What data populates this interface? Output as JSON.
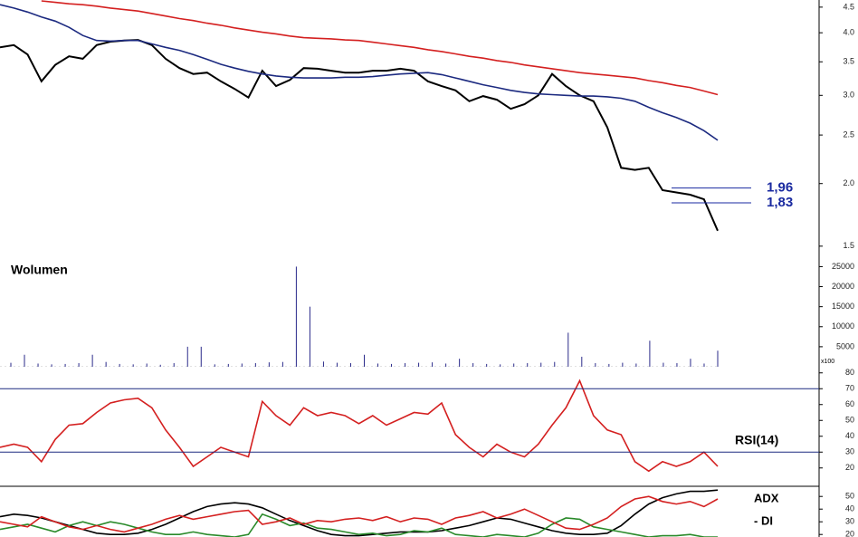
{
  "chart_data": [
    {
      "type": "line",
      "log": true,
      "ylim": [
        1.42,
        4.65
      ],
      "yticks": [
        1.5,
        {
          "value": 2,
          "label": "2.0"
        },
        2.5,
        {
          "value": 3,
          "label": "3.0"
        },
        3.5,
        {
          "value": 4,
          "label": "4.0"
        },
        4.5
      ],
      "series": [
        {
          "color": "#000000",
          "values": [
            3.74,
            3.78,
            3.62,
            3.2,
            3.45,
            3.59,
            3.55,
            3.78,
            3.84,
            3.86,
            3.87,
            3.78,
            3.55,
            3.4,
            3.31,
            3.33,
            3.2,
            3.09,
            2.97,
            3.36,
            3.13,
            3.22,
            3.4,
            3.39,
            3.36,
            3.33,
            3.33,
            3.36,
            3.36,
            3.39,
            3.36,
            3.2,
            3.13,
            3.07,
            2.92,
            2.99,
            2.94,
            2.82,
            2.88,
            3.0,
            3.31,
            3.13,
            3.0,
            2.92,
            2.59,
            2.15,
            2.13,
            2.15,
            1.94,
            1.92,
            1.9,
            1.86,
            1.61
          ]
        },
        {
          "color": "#d42020",
          "values": [
            null,
            null,
            null,
            4.63,
            4.6,
            4.57,
            4.55,
            4.52,
            4.48,
            4.45,
            4.42,
            4.37,
            4.32,
            4.27,
            4.23,
            4.18,
            4.14,
            4.09,
            4.05,
            4.01,
            3.98,
            3.94,
            3.91,
            3.9,
            3.89,
            3.87,
            3.86,
            3.83,
            3.8,
            3.77,
            3.74,
            3.7,
            3.67,
            3.63,
            3.59,
            3.56,
            3.52,
            3.49,
            3.45,
            3.42,
            3.39,
            3.36,
            3.33,
            3.31,
            3.29,
            3.27,
            3.25,
            3.21,
            3.18,
            3.14,
            3.11,
            3.06,
            3.01
          ]
        },
        {
          "color": "#1c2a80",
          "values": [
            4.55,
            4.48,
            4.4,
            4.3,
            4.22,
            4.1,
            3.95,
            3.86,
            3.85,
            3.86,
            3.86,
            3.8,
            3.74,
            3.69,
            3.62,
            3.54,
            3.46,
            3.4,
            3.35,
            3.31,
            3.28,
            3.26,
            3.25,
            3.25,
            3.25,
            3.26,
            3.26,
            3.27,
            3.29,
            3.31,
            3.32,
            3.33,
            3.3,
            3.25,
            3.2,
            3.15,
            3.11,
            3.07,
            3.04,
            3.02,
            3.01,
            3.0,
            2.99,
            2.99,
            2.98,
            2.96,
            2.92,
            2.84,
            2.77,
            2.71,
            2.64,
            2.55,
            2.44
          ]
        }
      ],
      "annotations": [
        {
          "value": 1.96,
          "label": "1,96"
        },
        {
          "value": 1.83,
          "label": "1,83"
        }
      ],
      "annotation_color": "#1a2aa0"
    },
    {
      "type": "bar",
      "title": "Wolumen",
      "unit_label": "x100",
      "color": "#2a2a8a",
      "ylim": [
        0,
        26000
      ],
      "yticks": [
        5000,
        10000,
        15000,
        20000,
        25000
      ],
      "values": [
        1000,
        3000,
        800,
        600,
        700,
        900,
        3000,
        1200,
        700,
        600,
        800,
        500,
        900,
        5000,
        5000,
        600,
        700,
        800,
        900,
        1100,
        1200,
        25000,
        15000,
        1300,
        1000,
        900,
        3000,
        800,
        700,
        900,
        1000,
        1100,
        800,
        2000,
        900,
        700,
        600,
        800,
        900,
        1000,
        1200,
        8500,
        2500,
        900,
        700,
        1000,
        800,
        6500,
        1000,
        900,
        2000,
        800,
        4000
      ]
    },
    {
      "type": "line",
      "title": "RSI(14)",
      "ylim": [
        9,
        81
      ],
      "yticks": [
        20,
        30,
        40,
        50,
        60,
        70,
        80
      ],
      "hlines": [
        30,
        70
      ],
      "series": [
        {
          "color": "#d42020",
          "values": [
            33,
            35,
            33,
            24,
            38,
            47,
            48,
            55,
            61,
            63,
            64,
            58,
            44,
            33,
            21,
            27,
            33,
            30,
            27,
            62,
            53,
            47,
            58,
            53,
            55,
            53,
            48,
            53,
            47,
            51,
            55,
            54,
            61,
            41,
            33,
            27,
            35,
            30,
            27,
            35,
            47,
            58,
            75,
            53,
            44,
            41,
            24,
            18,
            24,
            21,
            24,
            30,
            21
          ]
        }
      ]
    },
    {
      "type": "line",
      "ylim": [
        18,
        58
      ],
      "yticks": [
        20,
        30,
        40,
        50
      ],
      "series": [
        {
          "name": "ADX",
          "color": "#000000",
          "values": [
            34,
            36,
            35,
            33,
            30,
            27,
            24,
            21,
            20,
            20,
            21,
            24,
            28,
            33,
            38,
            42,
            44,
            45,
            44,
            41,
            36,
            31,
            27,
            23,
            20,
            19,
            19,
            20,
            21,
            22,
            22,
            22,
            23,
            25,
            27,
            30,
            33,
            32,
            29,
            26,
            23,
            21,
            20,
            20,
            21,
            27,
            36,
            44,
            49,
            52,
            54,
            54,
            55
          ]
        },
        {
          "color": "#2a8a2a",
          "values": [
            24,
            26,
            28,
            25,
            22,
            27,
            30,
            27,
            30,
            28,
            25,
            22,
            20,
            20,
            22,
            20,
            19,
            18,
            20,
            36,
            32,
            27,
            29,
            25,
            24,
            22,
            20,
            21,
            19,
            20,
            23,
            22,
            25,
            20,
            19,
            18,
            20,
            19,
            18,
            21,
            28,
            33,
            32,
            26,
            24,
            22,
            20,
            18,
            19,
            19,
            20,
            18,
            18
          ]
        },
        {
          "name": "- DI",
          "color": "#d42020",
          "values": [
            30,
            28,
            26,
            34,
            30,
            26,
            24,
            27,
            24,
            22,
            25,
            28,
            32,
            35,
            32,
            34,
            36,
            38,
            39,
            28,
            30,
            33,
            28,
            31,
            30,
            32,
            33,
            31,
            34,
            30,
            33,
            32,
            28,
            33,
            35,
            38,
            33,
            36,
            40,
            35,
            30,
            25,
            24,
            28,
            33,
            42,
            48,
            50,
            46,
            44,
            46,
            42,
            48
          ]
        }
      ]
    }
  ]
}
